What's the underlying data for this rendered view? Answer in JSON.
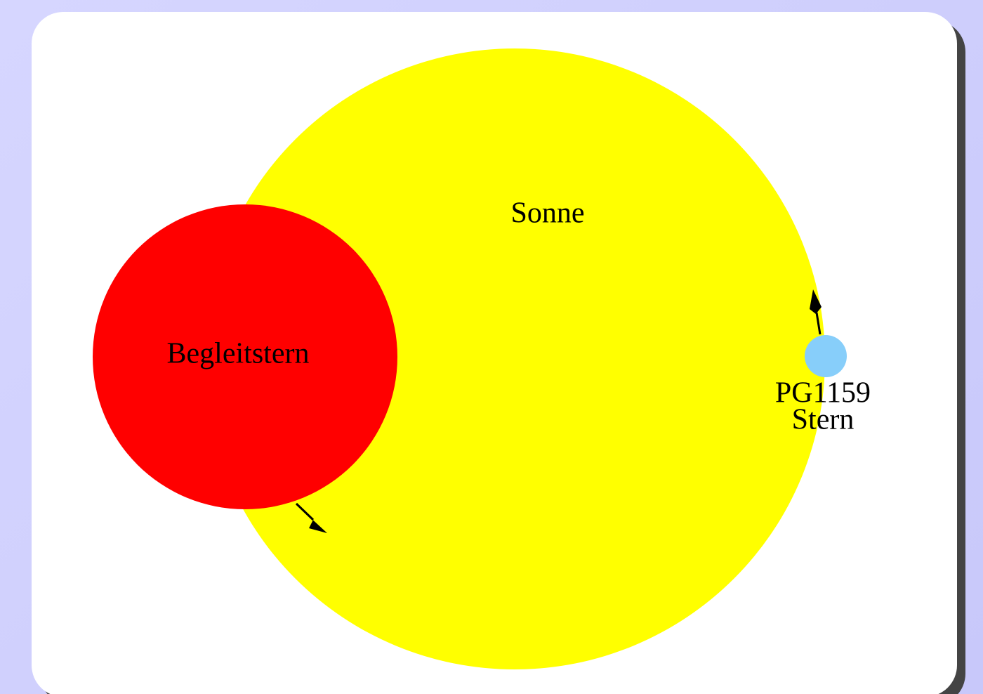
{
  "nodes": [
    {
      "label": "Sonne"
    },
    {
      "label": "Begleitstern"
    },
    {
      "lines": [
        "PG1159",
        "Stern"
      ]
    }
  ]
}
